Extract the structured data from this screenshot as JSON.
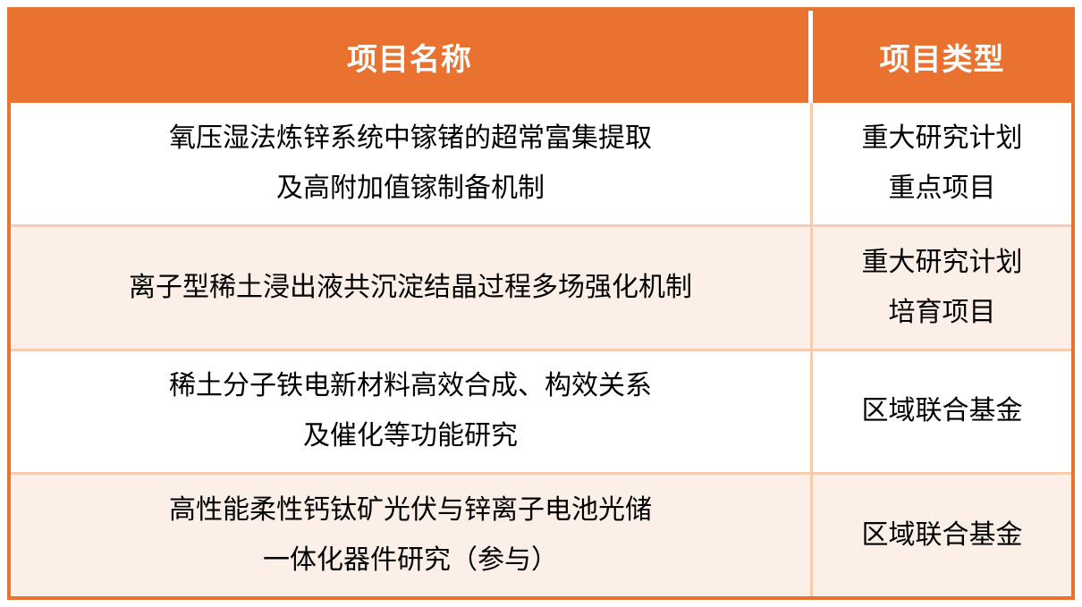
{
  "chart_data": {
    "type": "table",
    "columns": [
      "项目名称",
      "项目类型"
    ],
    "rows": [
      [
        "氧压湿法炼锌系统中镓锗的超常富集提取及高附加值镓制备机制",
        "重大研究计划重点项目"
      ],
      [
        "离子型稀土浸出液共沉淀结晶过程多场强化机制",
        "重大研究计划培育项目"
      ],
      [
        "稀土分子铁电新材料高效合成、构效关系及催化等功能研究",
        "区域联合基金"
      ],
      [
        "高性能柔性钙钛矿光伏与锌离子电池光储一体化器件研究（参与）",
        "区域联合基金"
      ]
    ],
    "title": "",
    "legend": "none",
    "grid": "divider lines between rows and columns"
  },
  "table": {
    "header": {
      "name": "项目名称",
      "type": "项目类型"
    },
    "rows": [
      {
        "name_lines": [
          "氧压湿法炼锌系统中镓锗的超常富集提取",
          "及高附加值镓制备机制"
        ],
        "type_lines": [
          "重大研究计划",
          "重点项目"
        ]
      },
      {
        "name_lines": [
          "离子型稀土浸出液共沉淀结晶过程多场强化机制"
        ],
        "type_lines": [
          "重大研究计划",
          "培育项目"
        ]
      },
      {
        "name_lines": [
          "稀土分子铁电新材料高效合成、构效关系",
          "及催化等功能研究"
        ],
        "type_lines": [
          "区域联合基金"
        ]
      },
      {
        "name_lines": [
          "高性能柔性钙钛矿光伏与锌离子电池光储",
          "一体化器件研究（参与）"
        ],
        "type_lines": [
          "区域联合基金"
        ]
      }
    ],
    "colors": {
      "header_bg": "#E97231",
      "header_text": "#FFFFFF",
      "outer_border": "#E97231",
      "divider": "#F6CBAE",
      "row_bg": "#FFFFFF",
      "row_alt_bg": "#FBEFE8",
      "body_text": "#000000"
    }
  }
}
